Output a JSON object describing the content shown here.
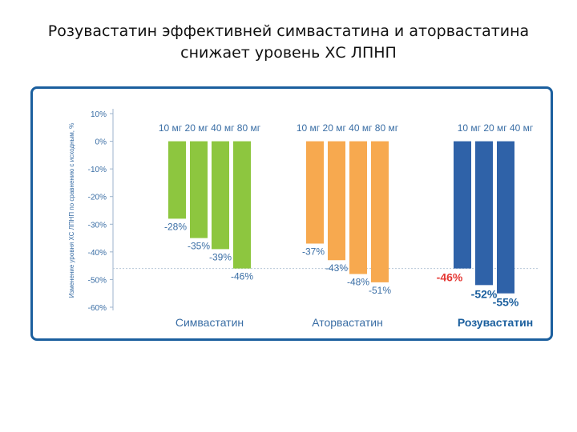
{
  "title_line1": "Розувастатин эффективней симвастатина и аторвастатина",
  "title_line2": "снижает уровень ХС ЛПНП",
  "chart_data": {
    "type": "bar",
    "ylabel": "Изменение уровня ХС ЛПНП по сравнению с исходным, %",
    "ylim": [
      -60,
      10
    ],
    "yticks": [
      "10%",
      "0%",
      "-10%",
      "-20%",
      "-30%",
      "-40%",
      "-50%",
      "-60%"
    ],
    "reference_line": -46,
    "groups": [
      {
        "name": "Симвастатин",
        "color": "#8dc63f",
        "label_color": "#3a6ea5",
        "doses": "10 мг 20 мг 40 мг 80 мг",
        "values": [
          -28,
          -35,
          -39,
          -46
        ],
        "labels": [
          "-28%",
          "-35%",
          "-39%",
          "-46%"
        ]
      },
      {
        "name": "Аторвастатин",
        "color": "#f7a94f",
        "label_color": "#3a6ea5",
        "doses": "10 мг 20 мг 40 мг 80 мг",
        "values": [
          -37,
          -43,
          -48,
          -51
        ],
        "labels": [
          "-37%",
          "-43%",
          "-48%",
          "-51%"
        ]
      },
      {
        "name": "Розувастатин",
        "color": "#2f62a8",
        "label_color": "#1b5f9e",
        "doses": "10 мг 20 мг 40 мг",
        "values": [
          -46,
          -52,
          -55
        ],
        "labels": [
          "-46%",
          "-52%",
          "-55%"
        ],
        "label_colors": [
          "#e53935",
          "#1b5f9e",
          "#1b5f9e"
        ]
      }
    ]
  }
}
